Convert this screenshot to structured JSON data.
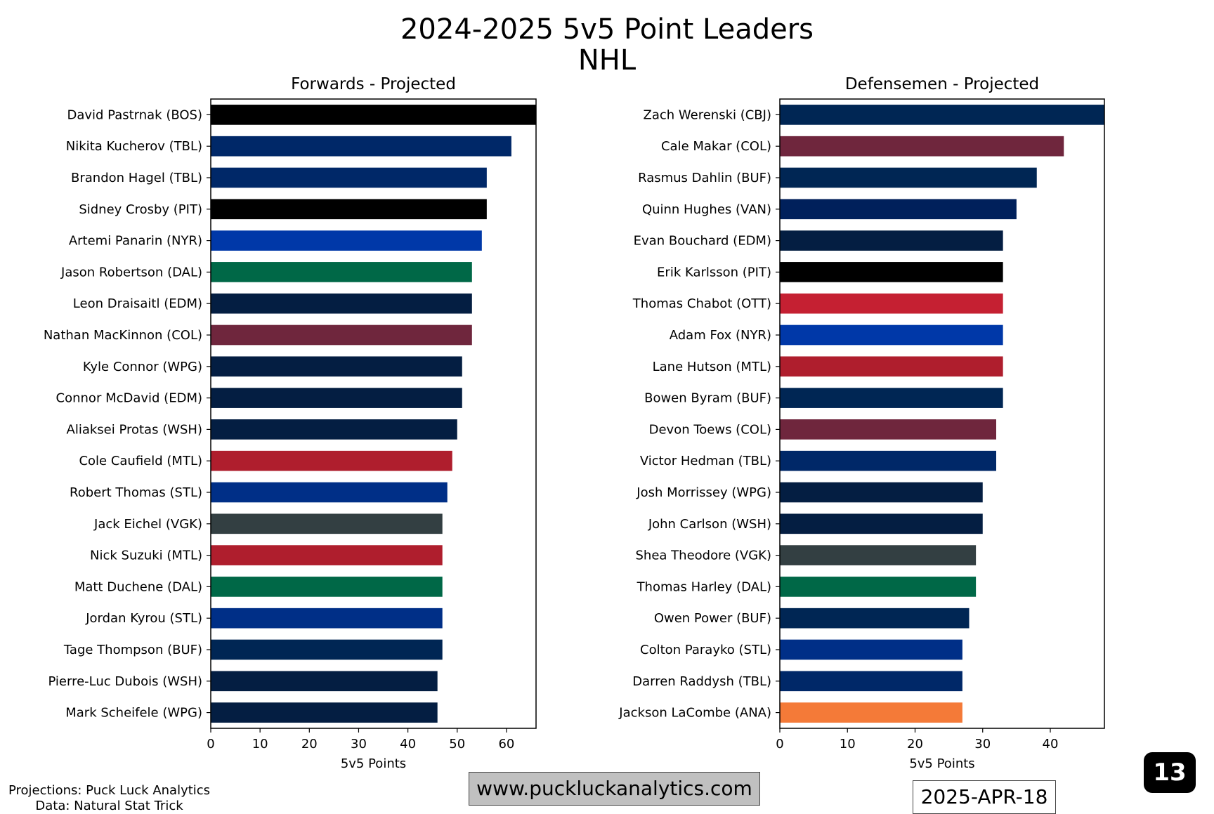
{
  "title": "2024-2025 5v5 Point Leaders",
  "subtitle": "NHL",
  "credits": {
    "line1": "Projections: Puck Luck Analytics",
    "line2": "Data: Natural Stat Trick"
  },
  "website": "www.puckluckanalytics.com",
  "date": "2025-APR-18",
  "page_number": "13",
  "chart_data": [
    {
      "type": "bar",
      "orientation": "horizontal",
      "title": "Forwards - Projected",
      "xlabel": "5v5 Points",
      "xlim": [
        0,
        66
      ],
      "xticks": [
        0,
        10,
        20,
        30,
        40,
        50,
        60
      ],
      "grid": false,
      "categories": [
        "David Pastrnak (BOS)",
        "Nikita Kucherov (TBL)",
        "Brandon Hagel (TBL)",
        "Sidney Crosby (PIT)",
        "Artemi Panarin (NYR)",
        "Jason Robertson (DAL)",
        "Leon Draisaitl (EDM)",
        "Nathan MacKinnon (COL)",
        "Kyle Connor (WPG)",
        "Connor McDavid (EDM)",
        "Aliaksei Protas (WSH)",
        "Cole Caufield (MTL)",
        "Robert Thomas (STL)",
        "Jack Eichel (VGK)",
        "Nick Suzuki (MTL)",
        "Matt Duchene (DAL)",
        "Jordan Kyrou (STL)",
        "Tage Thompson (BUF)",
        "Pierre-Luc Dubois (WSH)",
        "Mark Scheifele (WPG)"
      ],
      "values": [
        66,
        61,
        56,
        56,
        55,
        53,
        53,
        53,
        51,
        51,
        50,
        49,
        48,
        47,
        47,
        47,
        47,
        47,
        46,
        46
      ],
      "colors": [
        "#000000",
        "#002868",
        "#002868",
        "#000000",
        "#0038A8",
        "#006847",
        "#041E42",
        "#6F263D",
        "#041E42",
        "#041E42",
        "#041E42",
        "#AF1E2D",
        "#002F87",
        "#333F42",
        "#AF1E2D",
        "#006847",
        "#002F87",
        "#002654",
        "#041E42",
        "#041E42"
      ]
    },
    {
      "type": "bar",
      "orientation": "horizontal",
      "title": "Defensemen - Projected",
      "xlabel": "5v5 Points",
      "xlim": [
        0,
        48
      ],
      "xticks": [
        0,
        10,
        20,
        30,
        40
      ],
      "grid": false,
      "categories": [
        "Zach Werenski (CBJ)",
        "Cale Makar (COL)",
        "Rasmus Dahlin (BUF)",
        "Quinn Hughes (VAN)",
        "Evan Bouchard (EDM)",
        "Erik Karlsson (PIT)",
        "Thomas Chabot (OTT)",
        "Adam Fox (NYR)",
        "Lane Hutson (MTL)",
        "Bowen Byram (BUF)",
        "Devon Toews (COL)",
        "Victor Hedman (TBL)",
        "Josh Morrissey (WPG)",
        "John Carlson (WSH)",
        "Shea Theodore (VGK)",
        "Thomas Harley (DAL)",
        "Owen Power (BUF)",
        "Colton Parayko (STL)",
        "Darren Raddysh (TBL)",
        "Jackson LaCombe (ANA)"
      ],
      "values": [
        48,
        42,
        38,
        35,
        33,
        33,
        33,
        33,
        33,
        33,
        32,
        32,
        30,
        30,
        29,
        29,
        28,
        27,
        27,
        27
      ],
      "colors": [
        "#002654",
        "#6F263D",
        "#002654",
        "#00205B",
        "#041E42",
        "#000000",
        "#C52032",
        "#0038A8",
        "#AF1E2D",
        "#002654",
        "#6F263D",
        "#002868",
        "#041E42",
        "#041E42",
        "#333F42",
        "#006847",
        "#002654",
        "#002F87",
        "#002868",
        "#F47A38"
      ]
    }
  ]
}
